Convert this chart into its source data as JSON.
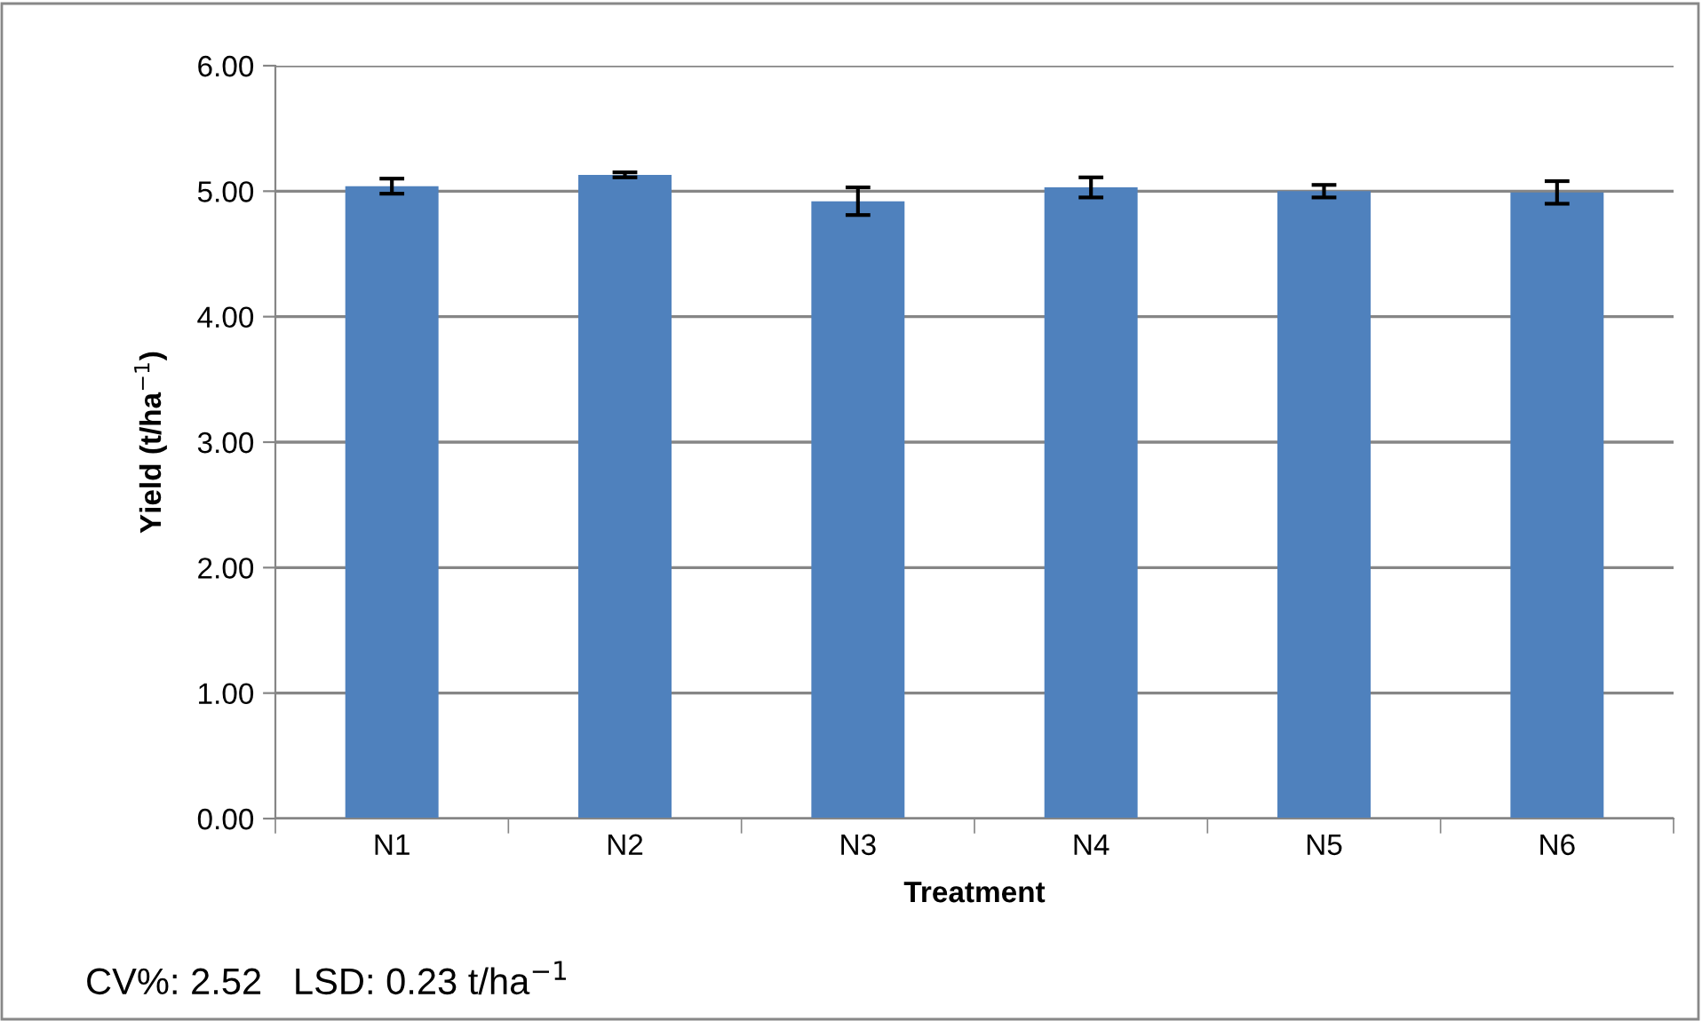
{
  "chart_data": {
    "type": "bar",
    "xlabel": "Treatment",
    "ylabel": "Yield (t/ha$^{−1}$)",
    "categories": [
      "N1",
      "N2",
      "N3",
      "N4",
      "N5",
      "N6"
    ],
    "values": [
      5.04,
      5.13,
      4.92,
      5.03,
      5.0,
      4.99
    ],
    "errors": [
      0.06,
      0.02,
      0.11,
      0.08,
      0.05,
      0.09
    ],
    "color": "#4f81bd",
    "ylim": [
      0,
      6
    ],
    "yticks": [
      {
        "value": 0,
        "label": "0.00"
      },
      {
        "value": 1,
        "label": "1.00"
      },
      {
        "value": 2,
        "label": "2.00"
      },
      {
        "value": 3,
        "label": "3.00"
      },
      {
        "value": 4,
        "label": "4.00"
      },
      {
        "value": 5,
        "label": "5.00"
      },
      {
        "value": 6,
        "label": "6.00"
      }
    ],
    "grid": "y",
    "annotations": [
      "CV%: 2.52   LSD: 0.23 t/ha$^{−1}$"
    ]
  }
}
